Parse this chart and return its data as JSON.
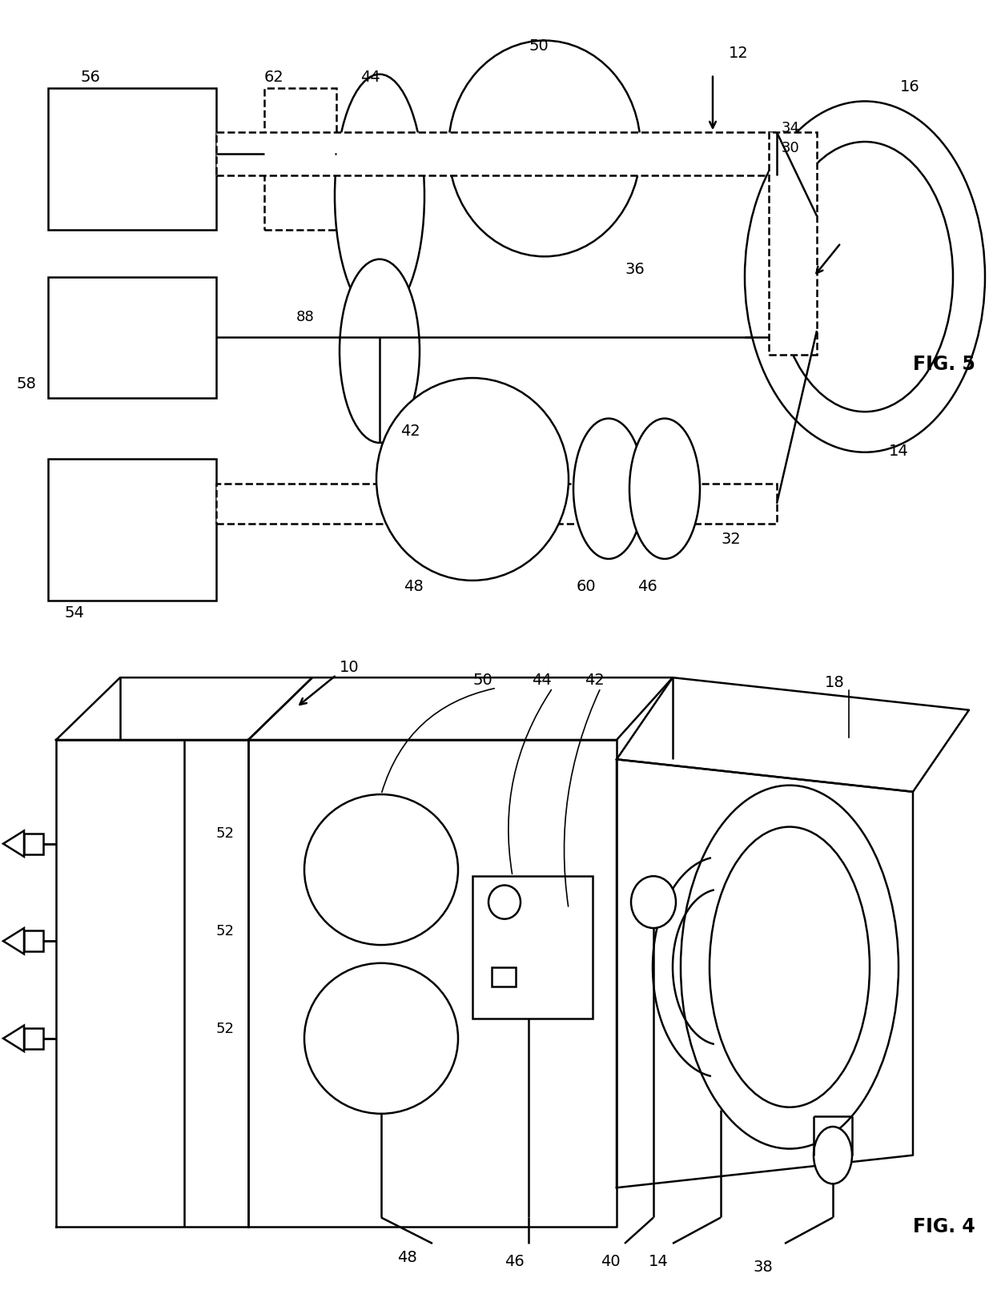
{
  "fig_width": 12.4,
  "fig_height": 16.21,
  "bg_color": "#ffffff",
  "line_color": "#000000",
  "lw": 1.8,
  "lw_thin": 1.0,
  "fs": 14,
  "fs_fig": 17
}
